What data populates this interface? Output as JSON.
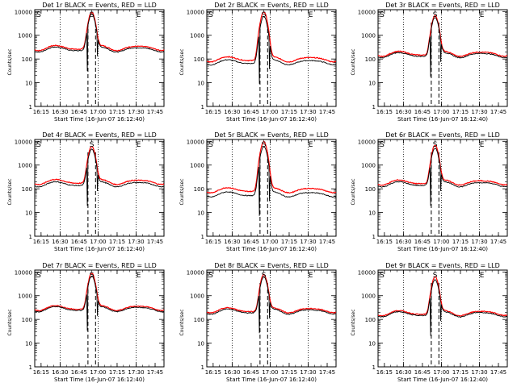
{
  "chart_data": [
    {
      "type": "line",
      "title": "Det 1r BLACK = Events, RED = LLD",
      "xlabel": "Start Time (16-Jun-07 16:12:40)",
      "ylabel": "Counts/sec",
      "yscale": "log",
      "ylim": [
        1,
        12000
      ],
      "xticks": [
        "16:15",
        "16:30",
        "16:45",
        "17:00",
        "17:15",
        "17:30",
        "17:45"
      ],
      "yticks": [
        "1",
        "10",
        "100",
        "1000",
        "10000"
      ],
      "markers": [
        "S",
        "E"
      ],
      "series": [
        {
          "name": "Events",
          "color": "#000000",
          "base": 260,
          "peak": 7500
        },
        {
          "name": "LLD",
          "color": "#ff0000",
          "base": 300,
          "peak": 9000
        }
      ]
    },
    {
      "type": "line",
      "title": "Det 2r BLACK = Events, RED = LLD",
      "xlabel": "Start Time (16-Jun-07 16:12:40)",
      "ylabel": "Counts/sec",
      "yscale": "log",
      "ylim": [
        1,
        12000
      ],
      "xticks": [
        "16:15",
        "16:30",
        "16:45",
        "17:00",
        "17:15",
        "17:30",
        "17:45"
      ],
      "yticks": [
        "1",
        "10",
        "100",
        "1000",
        "10000"
      ],
      "markers": [
        "S",
        "E"
      ],
      "series": [
        {
          "name": "Events",
          "color": "#000000",
          "base": 75,
          "peak": 6000
        },
        {
          "name": "LLD",
          "color": "#ff0000",
          "base": 100,
          "peak": 9500
        }
      ]
    },
    {
      "type": "line",
      "title": "Det 3r BLACK = Events, RED = LLD",
      "xlabel": "Start Time (16-Jun-07 16:12:40)",
      "ylabel": "Counts/sec",
      "yscale": "log",
      "ylim": [
        1,
        12000
      ],
      "xticks": [
        "16:15",
        "16:30",
        "16:45",
        "17:00",
        "17:15",
        "17:30",
        "17:45"
      ],
      "yticks": [
        "1",
        "10",
        "100",
        "1000",
        "10000"
      ],
      "markers": [
        "S",
        "E"
      ],
      "series": [
        {
          "name": "Events",
          "color": "#000000",
          "base": 150,
          "peak": 5500
        },
        {
          "name": "LLD",
          "color": "#ff0000",
          "base": 170,
          "peak": 6500
        }
      ]
    },
    {
      "type": "line",
      "title": "Det 4r BLACK = Events, RED = LLD",
      "xlabel": "Start Time (16-Jun-07 16:12:40)",
      "ylabel": "Counts/sec",
      "yscale": "log",
      "ylim": [
        1,
        12000
      ],
      "xticks": [
        "16:15",
        "16:30",
        "16:45",
        "17:00",
        "17:15",
        "17:30",
        "17:45"
      ],
      "yticks": [
        "1",
        "10",
        "100",
        "1000",
        "10000"
      ],
      "markers": [
        "S",
        "E"
      ],
      "series": [
        {
          "name": "Events",
          "color": "#000000",
          "base": 160,
          "peak": 4500
        },
        {
          "name": "LLD",
          "color": "#ff0000",
          "base": 200,
          "peak": 6000
        }
      ]
    },
    {
      "type": "line",
      "title": "Det 5r BLACK = Events, RED = LLD",
      "xlabel": "Start Time (16-Jun-07 16:12:40)",
      "ylabel": "Counts/sec",
      "yscale": "log",
      "ylim": [
        1,
        12000
      ],
      "xticks": [
        "16:15",
        "16:30",
        "16:45",
        "17:00",
        "17:15",
        "17:30",
        "17:45"
      ],
      "yticks": [
        "1",
        "10",
        "100",
        "1000",
        "10000"
      ],
      "markers": [
        "S",
        "E"
      ],
      "series": [
        {
          "name": "Events",
          "color": "#000000",
          "base": 60,
          "peak": 6000
        },
        {
          "name": "LLD",
          "color": "#ff0000",
          "base": 90,
          "peak": 9500
        }
      ]
    },
    {
      "type": "line",
      "title": "Det 6r BLACK = Events, RED = LLD",
      "xlabel": "Start Time (16-Jun-07 16:12:40)",
      "ylabel": "Counts/sec",
      "yscale": "log",
      "ylim": [
        1,
        12000
      ],
      "xticks": [
        "16:15",
        "16:30",
        "16:45",
        "17:00",
        "17:15",
        "17:30",
        "17:45"
      ],
      "yticks": [
        "1",
        "10",
        "100",
        "1000",
        "10000"
      ],
      "markers": [
        "S",
        "E"
      ],
      "series": [
        {
          "name": "Events",
          "color": "#000000",
          "base": 160,
          "peak": 5000
        },
        {
          "name": "LLD",
          "color": "#ff0000",
          "base": 190,
          "peak": 6500
        }
      ]
    },
    {
      "type": "line",
      "title": "Det 7r BLACK = Events, RED = LLD",
      "xlabel": "Start Time (16-Jun-07 16:12:40)",
      "ylabel": "Counts/sec",
      "yscale": "log",
      "ylim": [
        1,
        12000
      ],
      "xticks": [
        "16:15",
        "16:30",
        "16:45",
        "17:00",
        "17:15",
        "17:30",
        "17:45"
      ],
      "yticks": [
        "1",
        "10",
        "100",
        "1000",
        "10000"
      ],
      "markers": [
        "S",
        "E"
      ],
      "series": [
        {
          "name": "Events",
          "color": "#000000",
          "base": 280,
          "peak": 6500
        },
        {
          "name": "LLD",
          "color": "#ff0000",
          "base": 310,
          "peak": 8500
        }
      ]
    },
    {
      "type": "line",
      "title": "Det 8r BLACK = Events, RED = LLD",
      "xlabel": "Start Time (16-Jun-07 16:12:40)",
      "ylabel": "Counts/sec",
      "yscale": "log",
      "ylim": [
        1,
        12000
      ],
      "xticks": [
        "16:15",
        "16:30",
        "16:45",
        "17:00",
        "17:15",
        "17:30",
        "17:45"
      ],
      "yticks": [
        "1",
        "10",
        "100",
        "1000",
        "10000"
      ],
      "markers": [
        "S",
        "E"
      ],
      "series": [
        {
          "name": "Events",
          "color": "#000000",
          "base": 220,
          "peak": 6000
        },
        {
          "name": "LLD",
          "color": "#ff0000",
          "base": 250,
          "peak": 7500
        }
      ]
    },
    {
      "type": "line",
      "title": "Det 9r BLACK = Events, RED = LLD",
      "xlabel": "Start Time (16-Jun-07 16:12:40)",
      "ylabel": "Counts/sec",
      "yscale": "log",
      "ylim": [
        1,
        12000
      ],
      "xticks": [
        "16:15",
        "16:30",
        "16:45",
        "17:00",
        "17:15",
        "17:30",
        "17:45"
      ],
      "yticks": [
        "1",
        "10",
        "100",
        "1000",
        "10000"
      ],
      "markers": [
        "S",
        "E"
      ],
      "series": [
        {
          "name": "Events",
          "color": "#000000",
          "base": 170,
          "peak": 4500
        },
        {
          "name": "LLD",
          "color": "#ff0000",
          "base": 190,
          "peak": 6000
        }
      ]
    }
  ]
}
